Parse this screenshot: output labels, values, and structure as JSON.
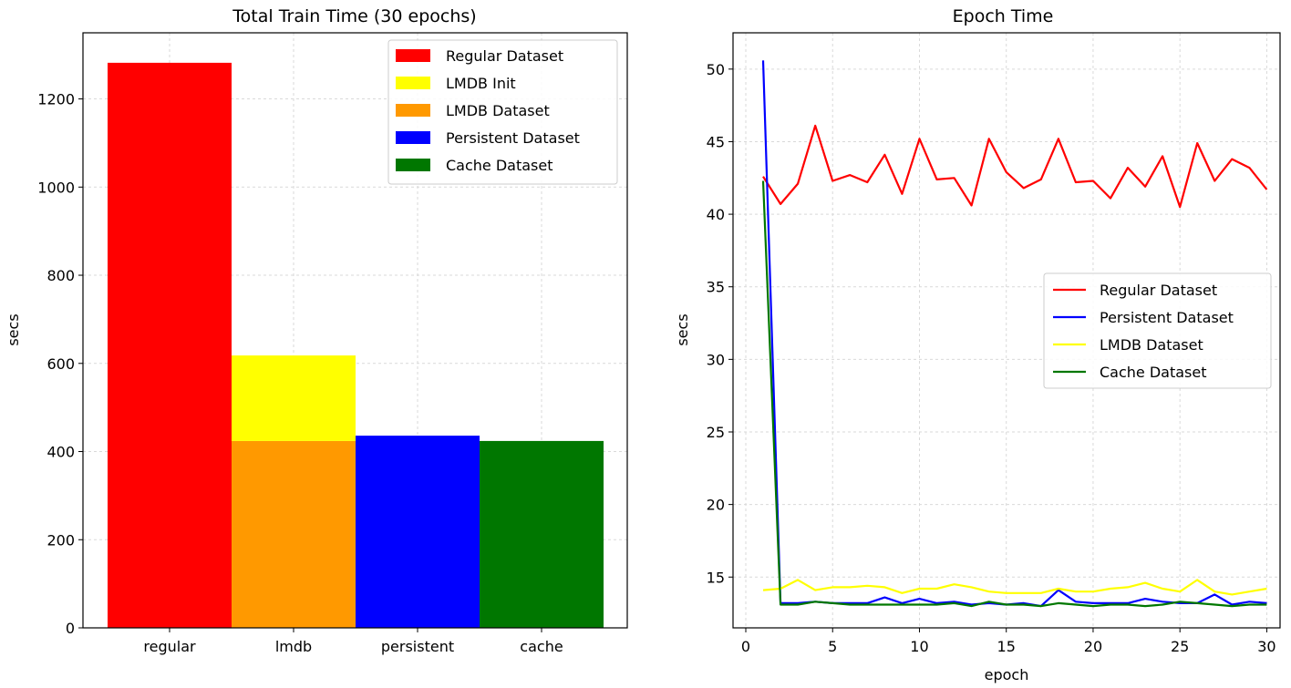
{
  "chart_data": [
    {
      "type": "bar",
      "title": "Total Train Time (30 epochs)",
      "xlabel": "",
      "ylabel": "secs",
      "ylim": [
        0,
        1350
      ],
      "yticks": [
        0,
        200,
        400,
        600,
        800,
        1000,
        1200
      ],
      "grid": true,
      "legend_position": "upper right",
      "categories": [
        "regular",
        "lmdb",
        "persistent",
        "cache"
      ],
      "series": [
        {
          "name": "Regular Dataset",
          "color": "#ff0000",
          "values": [
            1282,
            null,
            null,
            null
          ]
        },
        {
          "name": "LMDB Init",
          "color": "#ffff00",
          "values": [
            null,
            194,
            null,
            null
          ],
          "stacked_on": "LMDB Dataset"
        },
        {
          "name": "LMDB Dataset",
          "color": "#ff9900",
          "values": [
            null,
            424,
            null,
            null
          ]
        },
        {
          "name": "Persistent Dataset",
          "color": "#0000ff",
          "values": [
            null,
            null,
            436,
            null
          ]
        },
        {
          "name": "Cache Dataset",
          "color": "#007700",
          "values": [
            null,
            null,
            null,
            424
          ]
        }
      ]
    },
    {
      "type": "line",
      "title": "Epoch Time",
      "xlabel": "epoch",
      "ylabel": "secs",
      "xlim": [
        0,
        31.5
      ],
      "ylim": [
        11.5,
        52.5
      ],
      "xticks": [
        0,
        5,
        10,
        15,
        20,
        25,
        30
      ],
      "yticks": [
        15,
        20,
        25,
        30,
        35,
        40,
        45,
        50
      ],
      "grid": true,
      "legend_position": "center right",
      "x": [
        1,
        2,
        3,
        4,
        5,
        6,
        7,
        8,
        9,
        10,
        11,
        12,
        13,
        14,
        15,
        16,
        17,
        18,
        19,
        20,
        21,
        22,
        23,
        24,
        25,
        26,
        27,
        28,
        29,
        30
      ],
      "series": [
        {
          "name": "Regular Dataset",
          "color": "#ff0000",
          "values": [
            42.6,
            40.7,
            42.1,
            46.1,
            42.3,
            42.7,
            42.2,
            44.1,
            41.4,
            45.2,
            42.4,
            42.5,
            40.6,
            45.2,
            42.9,
            41.8,
            42.4,
            45.2,
            42.2,
            42.3,
            41.1,
            43.2,
            41.9,
            44.0,
            40.5,
            44.9,
            42.3,
            43.8,
            43.2,
            41.7
          ]
        },
        {
          "name": "Persistent Dataset",
          "color": "#0000ff",
          "values": [
            50.6,
            13.2,
            13.2,
            13.3,
            13.2,
            13.2,
            13.2,
            13.6,
            13.2,
            13.5,
            13.2,
            13.3,
            13.1,
            13.2,
            13.1,
            13.2,
            13.0,
            14.1,
            13.3,
            13.2,
            13.2,
            13.2,
            13.5,
            13.3,
            13.2,
            13.2,
            13.8,
            13.1,
            13.3,
            13.2
          ]
        },
        {
          "name": "LMDB Dataset",
          "color": "#ffff00",
          "values": [
            14.1,
            14.2,
            14.8,
            14.1,
            14.3,
            14.3,
            14.4,
            14.3,
            13.9,
            14.2,
            14.2,
            14.5,
            14.3,
            14.0,
            13.9,
            13.9,
            13.9,
            14.2,
            14.0,
            14.0,
            14.2,
            14.3,
            14.6,
            14.2,
            14.0,
            14.8,
            14.0,
            13.8,
            14.0,
            14.2
          ]
        },
        {
          "name": "Cache Dataset",
          "color": "#007700",
          "values": [
            42.3,
            13.1,
            13.1,
            13.3,
            13.2,
            13.1,
            13.1,
            13.1,
            13.1,
            13.1,
            13.1,
            13.2,
            13.0,
            13.3,
            13.1,
            13.1,
            13.0,
            13.2,
            13.1,
            13.0,
            13.1,
            13.1,
            13.0,
            13.1,
            13.3,
            13.2,
            13.1,
            13.0,
            13.1,
            13.1
          ]
        }
      ]
    }
  ]
}
